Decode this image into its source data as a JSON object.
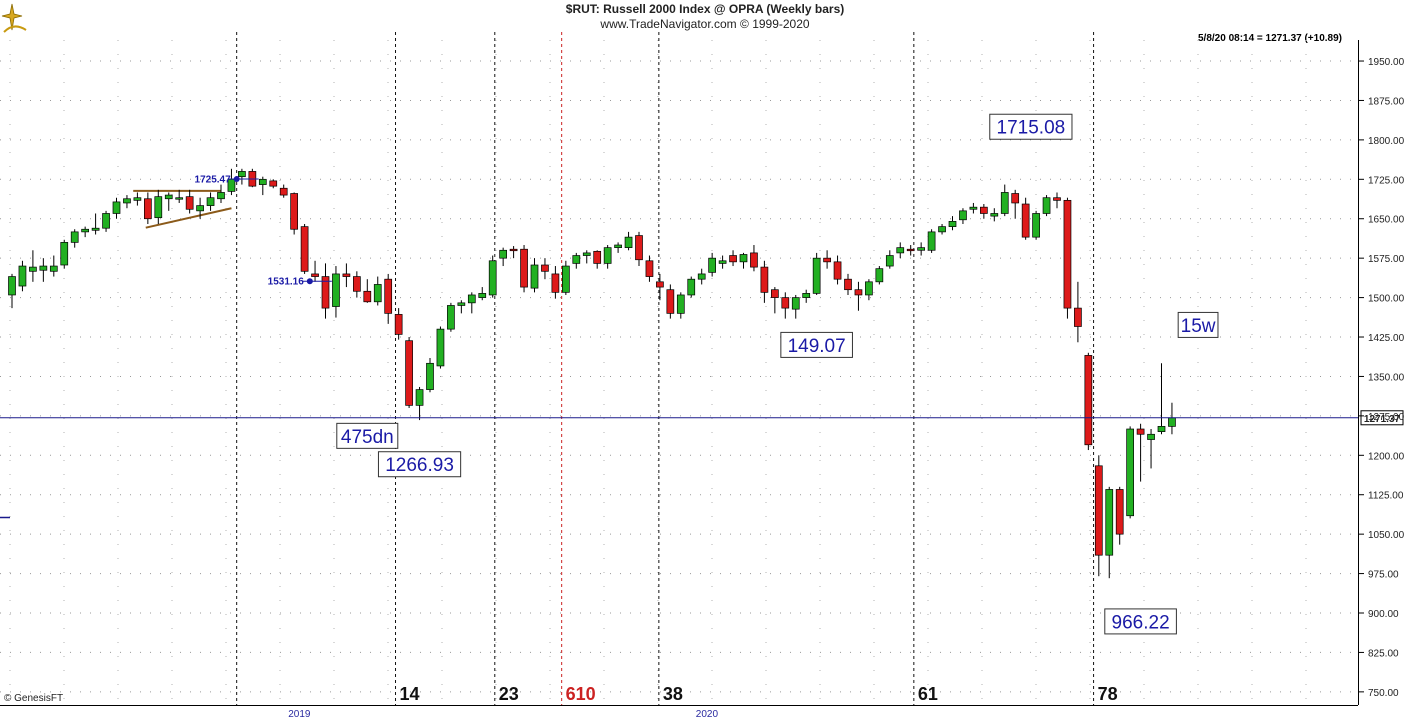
{
  "header": {
    "title": "$RUT:  Russell 2000 Index @ OPRA  (Weekly bars)",
    "subtitle": "www.TradeNavigator.com © 1999-2020",
    "quote": "5/8/20 08:14 = 1271.37 (+10.89)"
  },
  "footer": {
    "source": "© GenesisFT"
  },
  "colors": {
    "up": "#22b022",
    "down": "#dd1a1a",
    "annotation": "#1a1aa6",
    "priceLine": "#1a1a8c",
    "redCycle": "#cc2222",
    "triangle": "#8b5a1a"
  },
  "chart_data": {
    "type": "candlestick",
    "title": "$RUT:  Russell 2000 Index @ OPRA  (Weekly bars)",
    "ylim": [
      725,
      1990
    ],
    "y_ticks": [
      750,
      825,
      900,
      975,
      1050,
      1125,
      1200,
      1275,
      1350,
      1425,
      1500,
      1575,
      1650,
      1725,
      1800,
      1875,
      1950
    ],
    "y_tick_labels": [
      "750.00",
      "825.00",
      "900.00",
      "975.00",
      "1050.00",
      "1125.00",
      "1200.00",
      "1275.00",
      "1350.00",
      "1425.00",
      "1500.00",
      "1575.00",
      "1650.00",
      "1725.00",
      "1800.00",
      "1875.00",
      "1950.00"
    ],
    "x_years": [
      {
        "label": "2019",
        "bar": 27.5
      },
      {
        "label": "2020",
        "bar": 66.5
      }
    ],
    "candles": [
      {
        "o": 1505,
        "h": 1545,
        "l": 1480,
        "c": 1540
      },
      {
        "o": 1522,
        "h": 1570,
        "l": 1512,
        "c": 1560
      },
      {
        "o": 1550,
        "h": 1590,
        "l": 1530,
        "c": 1558
      },
      {
        "o": 1552,
        "h": 1575,
        "l": 1530,
        "c": 1560
      },
      {
        "o": 1550,
        "h": 1580,
        "l": 1540,
        "c": 1560
      },
      {
        "o": 1562,
        "h": 1610,
        "l": 1555,
        "c": 1605
      },
      {
        "o": 1605,
        "h": 1630,
        "l": 1595,
        "c": 1625
      },
      {
        "o": 1625,
        "h": 1635,
        "l": 1615,
        "c": 1630
      },
      {
        "o": 1628,
        "h": 1660,
        "l": 1620,
        "c": 1632
      },
      {
        "o": 1632,
        "h": 1665,
        "l": 1625,
        "c": 1660
      },
      {
        "o": 1660,
        "h": 1690,
        "l": 1650,
        "c": 1682
      },
      {
        "o": 1680,
        "h": 1695,
        "l": 1670,
        "c": 1688
      },
      {
        "o": 1685,
        "h": 1700,
        "l": 1675,
        "c": 1690
      },
      {
        "o": 1688,
        "h": 1700,
        "l": 1640,
        "c": 1650
      },
      {
        "o": 1652,
        "h": 1705,
        "l": 1640,
        "c": 1692
      },
      {
        "o": 1688,
        "h": 1700,
        "l": 1665,
        "c": 1695
      },
      {
        "o": 1690,
        "h": 1705,
        "l": 1680,
        "c": 1690
      },
      {
        "o": 1692,
        "h": 1705,
        "l": 1660,
        "c": 1668
      },
      {
        "o": 1665,
        "h": 1690,
        "l": 1650,
        "c": 1675
      },
      {
        "o": 1675,
        "h": 1700,
        "l": 1665,
        "c": 1690
      },
      {
        "o": 1688,
        "h": 1715,
        "l": 1680,
        "c": 1700
      },
      {
        "o": 1702,
        "h": 1745,
        "l": 1695,
        "c": 1725
      },
      {
        "o": 1730,
        "h": 1745,
        "l": 1715,
        "c": 1740
      },
      {
        "o": 1740,
        "h": 1745,
        "l": 1710,
        "c": 1712
      },
      {
        "o": 1715,
        "h": 1730,
        "l": 1695,
        "c": 1725
      },
      {
        "o": 1722,
        "h": 1725,
        "l": 1708,
        "c": 1712
      },
      {
        "o": 1708,
        "h": 1715,
        "l": 1690,
        "c": 1695
      },
      {
        "o": 1698,
        "h": 1700,
        "l": 1620,
        "c": 1630
      },
      {
        "o": 1635,
        "h": 1640,
        "l": 1545,
        "c": 1550
      },
      {
        "o": 1545,
        "h": 1570,
        "l": 1530,
        "c": 1540
      },
      {
        "o": 1540,
        "h": 1565,
        "l": 1460,
        "c": 1480
      },
      {
        "o": 1483,
        "h": 1560,
        "l": 1462,
        "c": 1545
      },
      {
        "o": 1545,
        "h": 1565,
        "l": 1520,
        "c": 1540
      },
      {
        "o": 1540,
        "h": 1550,
        "l": 1500,
        "c": 1512
      },
      {
        "o": 1512,
        "h": 1535,
        "l": 1490,
        "c": 1492
      },
      {
        "o": 1492,
        "h": 1540,
        "l": 1485,
        "c": 1525
      },
      {
        "o": 1535,
        "h": 1545,
        "l": 1450,
        "c": 1470
      },
      {
        "o": 1468,
        "h": 1480,
        "l": 1420,
        "c": 1430
      },
      {
        "o": 1418,
        "h": 1425,
        "l": 1290,
        "c": 1295
      },
      {
        "o": 1295,
        "h": 1330,
        "l": 1267,
        "c": 1325
      },
      {
        "o": 1325,
        "h": 1385,
        "l": 1320,
        "c": 1375
      },
      {
        "o": 1370,
        "h": 1445,
        "l": 1365,
        "c": 1440
      },
      {
        "o": 1440,
        "h": 1490,
        "l": 1435,
        "c": 1485
      },
      {
        "o": 1485,
        "h": 1495,
        "l": 1470,
        "c": 1490
      },
      {
        "o": 1490,
        "h": 1510,
        "l": 1470,
        "c": 1505
      },
      {
        "o": 1500,
        "h": 1520,
        "l": 1495,
        "c": 1508
      },
      {
        "o": 1505,
        "h": 1580,
        "l": 1500,
        "c": 1570
      },
      {
        "o": 1575,
        "h": 1595,
        "l": 1560,
        "c": 1590
      },
      {
        "o": 1592,
        "h": 1598,
        "l": 1575,
        "c": 1590
      },
      {
        "o": 1592,
        "h": 1600,
        "l": 1510,
        "c": 1520
      },
      {
        "o": 1518,
        "h": 1575,
        "l": 1510,
        "c": 1562
      },
      {
        "o": 1562,
        "h": 1575,
        "l": 1535,
        "c": 1550
      },
      {
        "o": 1545,
        "h": 1560,
        "l": 1498,
        "c": 1510
      },
      {
        "o": 1510,
        "h": 1570,
        "l": 1505,
        "c": 1560
      },
      {
        "o": 1565,
        "h": 1585,
        "l": 1555,
        "c": 1580
      },
      {
        "o": 1580,
        "h": 1590,
        "l": 1565,
        "c": 1585
      },
      {
        "o": 1588,
        "h": 1590,
        "l": 1555,
        "c": 1565
      },
      {
        "o": 1565,
        "h": 1600,
        "l": 1555,
        "c": 1595
      },
      {
        "o": 1595,
        "h": 1605,
        "l": 1585,
        "c": 1600
      },
      {
        "o": 1595,
        "h": 1625,
        "l": 1590,
        "c": 1615
      },
      {
        "o": 1618,
        "h": 1625,
        "l": 1560,
        "c": 1572
      },
      {
        "o": 1570,
        "h": 1580,
        "l": 1530,
        "c": 1540
      },
      {
        "o": 1530,
        "h": 1545,
        "l": 1495,
        "c": 1520
      },
      {
        "o": 1515,
        "h": 1525,
        "l": 1460,
        "c": 1470
      },
      {
        "o": 1470,
        "h": 1510,
        "l": 1460,
        "c": 1505
      },
      {
        "o": 1505,
        "h": 1540,
        "l": 1500,
        "c": 1535
      },
      {
        "o": 1535,
        "h": 1555,
        "l": 1525,
        "c": 1545
      },
      {
        "o": 1548,
        "h": 1585,
        "l": 1540,
        "c": 1575
      },
      {
        "o": 1565,
        "h": 1580,
        "l": 1555,
        "c": 1570
      },
      {
        "o": 1580,
        "h": 1590,
        "l": 1560,
        "c": 1568
      },
      {
        "o": 1568,
        "h": 1585,
        "l": 1555,
        "c": 1582
      },
      {
        "o": 1585,
        "h": 1600,
        "l": 1550,
        "c": 1558
      },
      {
        "o": 1558,
        "h": 1570,
        "l": 1490,
        "c": 1510
      },
      {
        "o": 1515,
        "h": 1520,
        "l": 1470,
        "c": 1500
      },
      {
        "o": 1500,
        "h": 1510,
        "l": 1460,
        "c": 1480
      },
      {
        "o": 1478,
        "h": 1505,
        "l": 1460,
        "c": 1500
      },
      {
        "o": 1500,
        "h": 1515,
        "l": 1490,
        "c": 1508
      },
      {
        "o": 1508,
        "h": 1585,
        "l": 1505,
        "c": 1575
      },
      {
        "o": 1575,
        "h": 1590,
        "l": 1555,
        "c": 1568
      },
      {
        "o": 1568,
        "h": 1580,
        "l": 1525,
        "c": 1535
      },
      {
        "o": 1535,
        "h": 1545,
        "l": 1505,
        "c": 1515
      },
      {
        "o": 1515,
        "h": 1530,
        "l": 1475,
        "c": 1505
      },
      {
        "o": 1505,
        "h": 1535,
        "l": 1495,
        "c": 1530
      },
      {
        "o": 1530,
        "h": 1560,
        "l": 1525,
        "c": 1555
      },
      {
        "o": 1560,
        "h": 1590,
        "l": 1555,
        "c": 1580
      },
      {
        "o": 1585,
        "h": 1605,
        "l": 1575,
        "c": 1595
      },
      {
        "o": 1592,
        "h": 1600,
        "l": 1580,
        "c": 1590
      },
      {
        "o": 1590,
        "h": 1605,
        "l": 1580,
        "c": 1595
      },
      {
        "o": 1590,
        "h": 1630,
        "l": 1585,
        "c": 1625
      },
      {
        "o": 1625,
        "h": 1640,
        "l": 1620,
        "c": 1635
      },
      {
        "o": 1635,
        "h": 1655,
        "l": 1628,
        "c": 1645
      },
      {
        "o": 1648,
        "h": 1670,
        "l": 1640,
        "c": 1665
      },
      {
        "o": 1668,
        "h": 1680,
        "l": 1660,
        "c": 1672
      },
      {
        "o": 1672,
        "h": 1678,
        "l": 1650,
        "c": 1660
      },
      {
        "o": 1655,
        "h": 1670,
        "l": 1645,
        "c": 1660
      },
      {
        "o": 1660,
        "h": 1715,
        "l": 1655,
        "c": 1700
      },
      {
        "o": 1698,
        "h": 1705,
        "l": 1650,
        "c": 1680
      },
      {
        "o": 1678,
        "h": 1690,
        "l": 1610,
        "c": 1615
      },
      {
        "o": 1615,
        "h": 1665,
        "l": 1610,
        "c": 1660
      },
      {
        "o": 1660,
        "h": 1695,
        "l": 1655,
        "c": 1690
      },
      {
        "o": 1690,
        "h": 1700,
        "l": 1670,
        "c": 1685
      },
      {
        "o": 1685,
        "h": 1690,
        "l": 1460,
        "c": 1480
      },
      {
        "o": 1480,
        "h": 1530,
        "l": 1415,
        "c": 1445
      },
      {
        "o": 1390,
        "h": 1395,
        "l": 1210,
        "c": 1220
      },
      {
        "o": 1180,
        "h": 1200,
        "l": 970,
        "c": 1010
      },
      {
        "o": 1010,
        "h": 1140,
        "l": 966.22,
        "c": 1135
      },
      {
        "o": 1135,
        "h": 1140,
        "l": 1030,
        "c": 1050
      },
      {
        "o": 1085,
        "h": 1255,
        "l": 1080,
        "c": 1250
      },
      {
        "o": 1250,
        "h": 1260,
        "l": 1150,
        "c": 1240
      },
      {
        "o": 1230,
        "h": 1250,
        "l": 1175,
        "c": 1240
      },
      {
        "o": 1245,
        "h": 1375,
        "l": 1240,
        "c": 1255
      },
      {
        "o": 1255,
        "h": 1300,
        "l": 1240,
        "c": 1271.37
      }
    ],
    "last_price": 1271.37,
    "last_price_label": "1271.37",
    "cycle_lines": [
      {
        "bar": 21.5,
        "label": "",
        "red": false
      },
      {
        "bar": 36.7,
        "label": "14",
        "red": false
      },
      {
        "bar": 46.2,
        "label": "23",
        "red": false
      },
      {
        "bar": 52.6,
        "label": "610",
        "red": true
      },
      {
        "bar": 61.9,
        "label": "38",
        "red": false
      },
      {
        "bar": 86.3,
        "label": "61",
        "red": false
      },
      {
        "bar": 103.5,
        "label": "78",
        "red": false
      }
    ],
    "annotations": [
      {
        "text": "1715.08",
        "bar": 97.5,
        "price": 1825
      },
      {
        "text": "149.07",
        "bar": 77,
        "price": 1410
      },
      {
        "text": "15w",
        "bar": 113.5,
        "price": 1448
      },
      {
        "text": "475dn",
        "bar": 34,
        "price": 1237
      },
      {
        "text": "1266.93",
        "bar": 39,
        "price": 1183
      },
      {
        "text": "966.22",
        "bar": 108,
        "price": 884
      }
    ],
    "point_labels": [
      {
        "text": "1725.47",
        "bar": 21.5,
        "price": 1725.47
      },
      {
        "text": "1531.16",
        "bar": 28.5,
        "price": 1531.16
      }
    ]
  }
}
